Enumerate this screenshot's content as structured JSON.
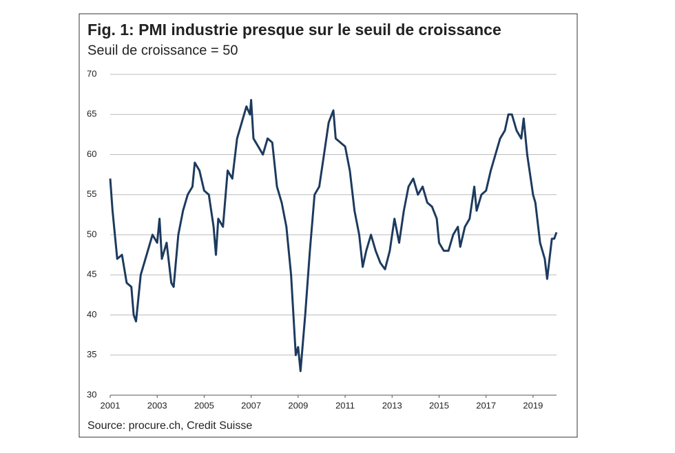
{
  "chart_data": {
    "type": "line",
    "title": "Fig. 1: PMI industrie presque sur le seuil de croissance",
    "subtitle": "Seuil de croissance = 50",
    "source": "Source: procure.ch, Credit Suisse",
    "x": [
      2001.0,
      2001.1,
      2001.3,
      2001.5,
      2001.7,
      2001.9,
      2002.0,
      2002.1,
      2002.3,
      2002.6,
      2002.8,
      2003.0,
      2003.1,
      2003.2,
      2003.4,
      2003.6,
      2003.7,
      2003.9,
      2004.1,
      2004.3,
      2004.5,
      2004.6,
      2004.8,
      2005.0,
      2005.2,
      2005.4,
      2005.5,
      2005.6,
      2005.8,
      2006.0,
      2006.2,
      2006.4,
      2006.6,
      2006.8,
      2006.95,
      2007.0,
      2007.1,
      2007.3,
      2007.5,
      2007.7,
      2007.9,
      2008.1,
      2008.3,
      2008.5,
      2008.7,
      2008.9,
      2009.0,
      2009.1,
      2009.3,
      2009.5,
      2009.7,
      2009.9,
      2010.1,
      2010.3,
      2010.5,
      2010.6,
      2010.8,
      2011.0,
      2011.2,
      2011.4,
      2011.6,
      2011.75,
      2011.9,
      2012.1,
      2012.3,
      2012.5,
      2012.7,
      2012.9,
      2013.1,
      2013.3,
      2013.5,
      2013.7,
      2013.9,
      2014.1,
      2014.3,
      2014.5,
      2014.7,
      2014.9,
      2015.0,
      2015.2,
      2015.4,
      2015.6,
      2015.8,
      2015.9,
      2016.1,
      2016.3,
      2016.5,
      2016.6,
      2016.8,
      2017.0,
      2017.2,
      2017.4,
      2017.6,
      2017.8,
      2017.95,
      2018.1,
      2018.3,
      2018.5,
      2018.6,
      2018.75,
      2018.9,
      2019.0,
      2019.1,
      2019.3,
      2019.5,
      2019.6,
      2019.7,
      2019.8,
      2019.9,
      2020.0
    ],
    "series": [
      {
        "name": "PMI",
        "color": "#1d3a5e",
        "values": [
          57,
          53,
          47,
          47.5,
          44,
          43.5,
          40,
          39.2,
          45,
          48,
          50,
          49,
          52,
          47,
          49,
          44,
          43.5,
          50,
          53,
          55,
          56,
          59,
          58,
          55.5,
          55,
          51,
          47.5,
          52,
          51,
          58,
          57,
          62,
          64,
          66,
          65,
          66.8,
          62,
          61,
          60,
          62,
          61.5,
          56,
          54,
          51,
          45,
          35,
          36,
          33,
          40,
          48,
          55,
          56,
          60,
          64,
          65.5,
          62,
          61.5,
          61,
          58,
          53,
          50,
          46,
          48,
          50,
          48,
          46.5,
          45.7,
          48,
          52,
          49,
          53,
          56,
          57,
          55,
          56,
          54,
          53.5,
          52,
          49,
          48,
          48,
          50,
          51,
          48.5,
          51,
          52,
          56,
          53,
          55,
          55.5,
          58,
          60,
          62,
          63,
          65,
          65,
          63,
          62,
          64.5,
          60,
          57,
          55,
          54,
          49,
          47,
          44.5,
          47,
          49.5,
          49.5,
          50.3
        ]
      }
    ],
    "xlim": [
      2001,
      2020
    ],
    "xticks": [
      2001,
      2003,
      2005,
      2007,
      2009,
      2011,
      2013,
      2015,
      2017,
      2019
    ],
    "ylim": [
      30,
      70
    ],
    "yticks": [
      30,
      35,
      40,
      45,
      50,
      55,
      60,
      65,
      70
    ],
    "grid": true
  }
}
